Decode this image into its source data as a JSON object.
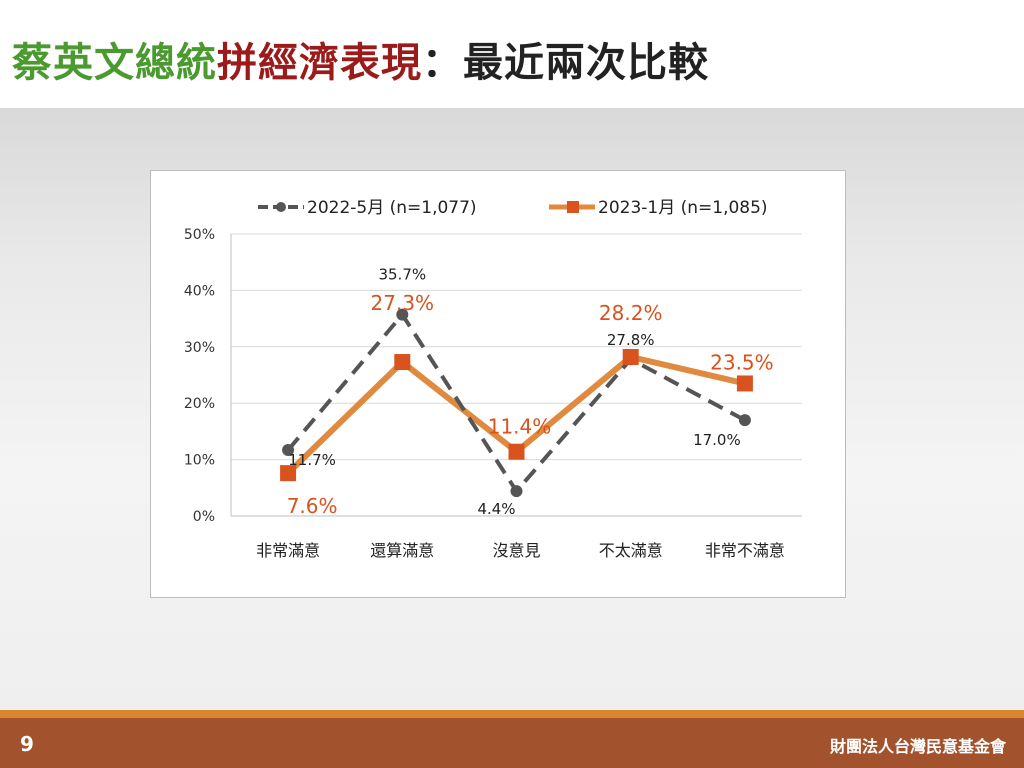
{
  "title": {
    "part1": "蔡英文總統",
    "part2": "拼經濟表現",
    "part3": "：最近兩次比較"
  },
  "footer": {
    "page_number": "9",
    "organization": "財團法人台灣民意基金會"
  },
  "colors": {
    "series1": "#555555",
    "series2": "#df8a3e",
    "series2_marker": "#d9531e",
    "series2_label": "#d9531e",
    "title_green": "#4a9a30",
    "title_red": "#9b1b1b",
    "footer_bg": "#a2532d",
    "footer_strip": "#d9862c"
  },
  "chart_data": {
    "type": "line",
    "categories": [
      "非常滿意",
      "還算滿意",
      "沒意見",
      "不太滿意",
      "非常不滿意"
    ],
    "ylim": [
      0,
      50
    ],
    "yticks": [
      "0%",
      "10%",
      "20%",
      "30%",
      "40%",
      "50%"
    ],
    "grid": true,
    "legend_position": "top",
    "series": [
      {
        "name": "2022-5月  (n=1,077)",
        "values": [
          11.7,
          35.7,
          4.4,
          27.8,
          17.0
        ],
        "labels": [
          "11.7%",
          "35.7%",
          "4.4%",
          "27.8%",
          "17.0%"
        ],
        "style": "dashed",
        "marker": "circle"
      },
      {
        "name": "2023-1月  (n=1,085)",
        "values": [
          7.6,
          27.3,
          11.4,
          28.2,
          23.5
        ],
        "labels": [
          "7.6%",
          "27.3%",
          "11.4%",
          "28.2%",
          "23.5%"
        ],
        "style": "solid",
        "marker": "square"
      }
    ]
  }
}
